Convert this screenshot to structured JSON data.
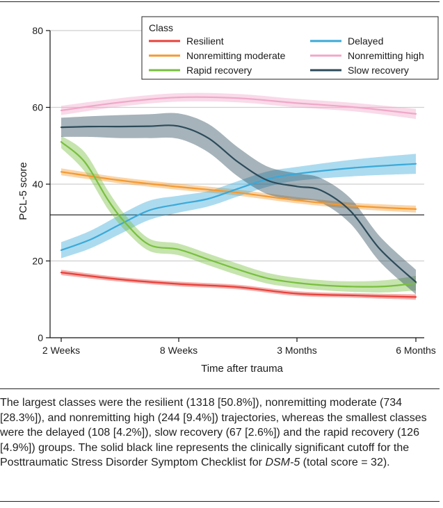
{
  "chart_data": {
    "type": "line",
    "x_categories": [
      "2 Weeks",
      "8 Weeks",
      "3 Months",
      "6 Months"
    ],
    "xlabel": "Time after trauma",
    "ylabel": "PCL-5 score",
    "ylim": [
      0,
      80
    ],
    "yticks": [
      0,
      20,
      40,
      60,
      80
    ],
    "grid": true,
    "cutoff_line": 32,
    "legend": {
      "title": "Class",
      "placement": "top-right"
    },
    "series": [
      {
        "name": "Resilient",
        "color": "#e8403a",
        "x": [
          0,
          0.5,
          1,
          1.5,
          2,
          2.5,
          3
        ],
        "y": [
          17,
          15.2,
          14,
          13.2,
          11.5,
          11,
          10.6
        ],
        "band": [
          0.7,
          0.6,
          0.6,
          0.6,
          0.6,
          0.6,
          0.7
        ]
      },
      {
        "name": "Nonremitting moderate",
        "color": "#f39a32",
        "x": [
          0,
          0.5,
          1,
          1.5,
          2,
          2.5,
          3
        ],
        "y": [
          43.2,
          41,
          39.3,
          37.8,
          35.8,
          34.3,
          33.5
        ],
        "band": [
          0.9,
          0.8,
          0.8,
          0.8,
          0.8,
          0.8,
          0.9
        ]
      },
      {
        "name": "Nonremitting high",
        "color": "#f0a7c8",
        "x": [
          0,
          0.5,
          1,
          1.5,
          2,
          2.5,
          3
        ],
        "y": [
          59.2,
          61.3,
          62.6,
          62.4,
          61.1,
          60,
          58.3
        ],
        "band": [
          1.2,
          1.1,
          1.1,
          1.1,
          1.1,
          1.1,
          1.3
        ]
      },
      {
        "name": "Delayed",
        "color": "#3aa9d9",
        "x": [
          0,
          0.25,
          0.5,
          0.75,
          1,
          1.25,
          1.5,
          1.75,
          2,
          2.5,
          3
        ],
        "y": [
          22.8,
          25.6,
          29.5,
          33.2,
          34.8,
          36.2,
          38.8,
          41.3,
          42.7,
          44.3,
          45.3
        ],
        "band": [
          2.1,
          2.3,
          2.5,
          2.5,
          2.2,
          2.0,
          2.0,
          2.0,
          1.8,
          2.2,
          2.6
        ]
      },
      {
        "name": "Rapid recovery",
        "color": "#78bf3e",
        "x": [
          0,
          0.2,
          0.4,
          0.55,
          0.75,
          1,
          1.25,
          1.5,
          1.75,
          2,
          2.25,
          2.5,
          2.75,
          3
        ],
        "y": [
          51,
          45.8,
          35.8,
          29.8,
          24.2,
          23,
          20.4,
          17.8,
          15.5,
          14.3,
          13.6,
          13.3,
          13.4,
          14.2
        ],
        "band": [
          1.6,
          2.5,
          2.4,
          2.0,
          1.6,
          1.5,
          1.5,
          1.5,
          1.4,
          1.3,
          1.3,
          1.4,
          1.6,
          1.9
        ]
      },
      {
        "name": "Slow recovery",
        "color": "#2c4b5a",
        "x": [
          0,
          0.25,
          0.5,
          0.75,
          1,
          1.25,
          1.5,
          1.75,
          2,
          2.2,
          2.45,
          2.7,
          3
        ],
        "y": [
          54.8,
          55,
          55,
          55.1,
          55.1,
          52,
          45.8,
          41,
          39.4,
          38.4,
          33,
          23,
          14.5
        ],
        "band": [
          2.5,
          2.7,
          3.0,
          3.1,
          3.3,
          3.7,
          3.8,
          3.6,
          3.4,
          3.2,
          3.3,
          3.3,
          3.2
        ]
      }
    ]
  },
  "caption": {
    "text_before": "The largest classes were the resilient (1318 [50.8%]), nonremitting moderate (734 [28.3%]), and nonremitting high (244 [9.4%]) trajectories, whereas the smallest classes were the delayed (108 [4.2%]), slow recovery (67 [2.6%]) and the rapid recovery (126 [4.9%]) groups. The solid black line represents the clinically significant cutoff for the Posttraumatic Stress Disorder Symptom Checklist for ",
    "emphasis": "DSM-5",
    "text_after": " (total score = 32)."
  }
}
